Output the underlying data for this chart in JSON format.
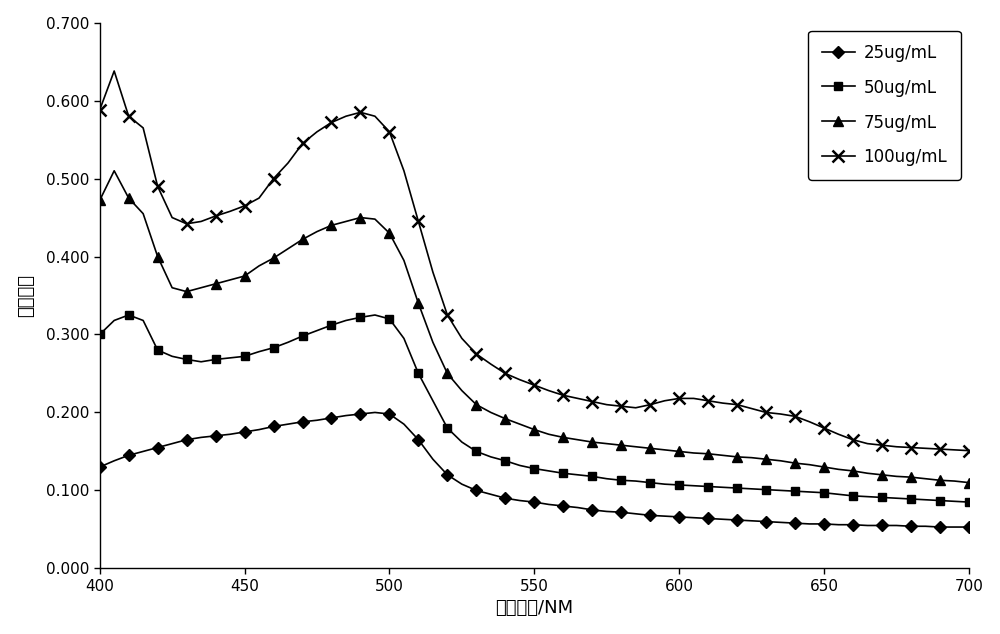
{
  "title": "",
  "xlabel": "吸收波长/NM",
  "ylabel": "吸光度値",
  "xlim": [
    400,
    700
  ],
  "ylim": [
    0.0,
    0.7
  ],
  "yticks": [
    0.0,
    0.1,
    0.2,
    0.3,
    0.4,
    0.5,
    0.6,
    0.7
  ],
  "xticks": [
    400,
    450,
    500,
    550,
    600,
    650,
    700
  ],
  "background_color": "#ffffff",
  "series": [
    {
      "label": "25ug/mL",
      "marker": "D",
      "color": "#000000",
      "markersize": 6,
      "markevery": 2,
      "x": [
        400,
        405,
        410,
        415,
        420,
        425,
        430,
        435,
        440,
        445,
        450,
        455,
        460,
        465,
        470,
        475,
        480,
        485,
        490,
        495,
        500,
        505,
        510,
        515,
        520,
        525,
        530,
        535,
        540,
        545,
        550,
        555,
        560,
        565,
        570,
        575,
        580,
        585,
        590,
        595,
        600,
        605,
        610,
        615,
        620,
        625,
        630,
        635,
        640,
        645,
        650,
        655,
        660,
        665,
        670,
        675,
        680,
        685,
        690,
        695,
        700
      ],
      "y": [
        0.13,
        0.138,
        0.145,
        0.15,
        0.155,
        0.16,
        0.165,
        0.168,
        0.17,
        0.172,
        0.175,
        0.178,
        0.182,
        0.185,
        0.188,
        0.19,
        0.193,
        0.196,
        0.198,
        0.2,
        0.198,
        0.185,
        0.165,
        0.14,
        0.12,
        0.108,
        0.1,
        0.095,
        0.09,
        0.087,
        0.085,
        0.082,
        0.08,
        0.078,
        0.075,
        0.073,
        0.072,
        0.07,
        0.068,
        0.067,
        0.066,
        0.065,
        0.064,
        0.063,
        0.062,
        0.061,
        0.06,
        0.059,
        0.058,
        0.057,
        0.057,
        0.056,
        0.056,
        0.055,
        0.055,
        0.055,
        0.054,
        0.054,
        0.053,
        0.053,
        0.053
      ]
    },
    {
      "label": "50ug/mL",
      "marker": "s",
      "color": "#000000",
      "markersize": 6,
      "markevery": 2,
      "x": [
        400,
        405,
        410,
        415,
        420,
        425,
        430,
        435,
        440,
        445,
        450,
        455,
        460,
        465,
        470,
        475,
        480,
        485,
        490,
        495,
        500,
        505,
        510,
        515,
        520,
        525,
        530,
        535,
        540,
        545,
        550,
        555,
        560,
        565,
        570,
        575,
        580,
        585,
        590,
        595,
        600,
        605,
        610,
        615,
        620,
        625,
        630,
        635,
        640,
        645,
        650,
        655,
        660,
        665,
        670,
        675,
        680,
        685,
        690,
        695,
        700
      ],
      "y": [
        0.3,
        0.318,
        0.325,
        0.318,
        0.28,
        0.272,
        0.268,
        0.265,
        0.268,
        0.27,
        0.272,
        0.278,
        0.283,
        0.29,
        0.298,
        0.305,
        0.312,
        0.318,
        0.322,
        0.325,
        0.32,
        0.295,
        0.25,
        0.215,
        0.18,
        0.162,
        0.15,
        0.143,
        0.138,
        0.132,
        0.128,
        0.125,
        0.122,
        0.12,
        0.118,
        0.115,
        0.113,
        0.112,
        0.11,
        0.108,
        0.107,
        0.106,
        0.105,
        0.104,
        0.103,
        0.102,
        0.101,
        0.1,
        0.099,
        0.098,
        0.097,
        0.095,
        0.093,
        0.092,
        0.091,
        0.09,
        0.089,
        0.088,
        0.087,
        0.086,
        0.085
      ]
    },
    {
      "label": "75ug/mL",
      "marker": "^",
      "color": "#000000",
      "markersize": 7,
      "markevery": 2,
      "x": [
        400,
        405,
        410,
        415,
        420,
        425,
        430,
        435,
        440,
        445,
        450,
        455,
        460,
        465,
        470,
        475,
        480,
        485,
        490,
        495,
        500,
        505,
        510,
        515,
        520,
        525,
        530,
        535,
        540,
        545,
        550,
        555,
        560,
        565,
        570,
        575,
        580,
        585,
        590,
        595,
        600,
        605,
        610,
        615,
        620,
        625,
        630,
        635,
        640,
        645,
        650,
        655,
        660,
        665,
        670,
        675,
        680,
        685,
        690,
        695,
        700
      ],
      "y": [
        0.472,
        0.51,
        0.475,
        0.455,
        0.4,
        0.36,
        0.355,
        0.36,
        0.365,
        0.37,
        0.375,
        0.388,
        0.398,
        0.41,
        0.422,
        0.432,
        0.44,
        0.445,
        0.45,
        0.448,
        0.43,
        0.395,
        0.34,
        0.29,
        0.25,
        0.228,
        0.21,
        0.2,
        0.192,
        0.185,
        0.178,
        0.172,
        0.168,
        0.165,
        0.162,
        0.16,
        0.158,
        0.156,
        0.154,
        0.152,
        0.15,
        0.148,
        0.147,
        0.145,
        0.143,
        0.142,
        0.14,
        0.138,
        0.135,
        0.133,
        0.13,
        0.127,
        0.125,
        0.122,
        0.12,
        0.118,
        0.117,
        0.115,
        0.113,
        0.112,
        0.11
      ]
    },
    {
      "label": "100ug/mL",
      "marker": "x",
      "color": "#000000",
      "markersize": 8,
      "markevery": 2,
      "x": [
        400,
        405,
        410,
        415,
        420,
        425,
        430,
        435,
        440,
        445,
        450,
        455,
        460,
        465,
        470,
        475,
        480,
        485,
        490,
        495,
        500,
        505,
        510,
        515,
        520,
        525,
        530,
        535,
        540,
        545,
        550,
        555,
        560,
        565,
        570,
        575,
        580,
        585,
        590,
        595,
        600,
        605,
        610,
        615,
        620,
        625,
        630,
        635,
        640,
        645,
        650,
        655,
        660,
        665,
        670,
        675,
        680,
        685,
        690,
        695,
        700
      ],
      "y": [
        0.588,
        0.638,
        0.58,
        0.565,
        0.49,
        0.45,
        0.442,
        0.445,
        0.452,
        0.458,
        0.465,
        0.475,
        0.5,
        0.52,
        0.545,
        0.56,
        0.572,
        0.58,
        0.585,
        0.58,
        0.56,
        0.51,
        0.445,
        0.38,
        0.325,
        0.295,
        0.275,
        0.262,
        0.25,
        0.242,
        0.235,
        0.228,
        0.222,
        0.218,
        0.214,
        0.21,
        0.208,
        0.206,
        0.21,
        0.215,
        0.218,
        0.218,
        0.215,
        0.212,
        0.21,
        0.205,
        0.2,
        0.198,
        0.195,
        0.188,
        0.18,
        0.172,
        0.165,
        0.16,
        0.158,
        0.156,
        0.155,
        0.154,
        0.153,
        0.152,
        0.151
      ]
    }
  ]
}
